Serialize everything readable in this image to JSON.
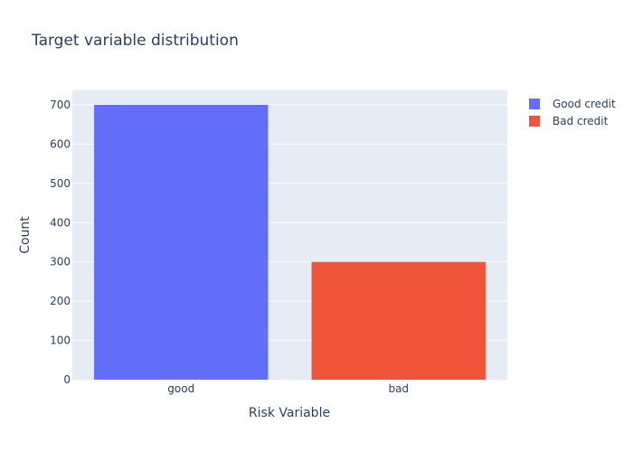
{
  "chart_data": {
    "type": "bar",
    "title": "Target variable distribution",
    "xlabel": "Risk Variable",
    "ylabel": "Count",
    "ylim": [
      0,
      700
    ],
    "y_ticks": [
      0,
      100,
      200,
      300,
      400,
      500,
      600,
      700
    ],
    "grid": true,
    "legend_position": "top-right",
    "series": [
      {
        "name": "Good credit",
        "category": "good",
        "value": 700,
        "color": "#636efa"
      },
      {
        "name": "Bad credit",
        "category": "bad",
        "value": 300,
        "color": "#ef553b"
      }
    ],
    "plot_background": "#e5ecf6",
    "gridline_color": "#ffffff",
    "text_color": "#2a3f5f"
  }
}
